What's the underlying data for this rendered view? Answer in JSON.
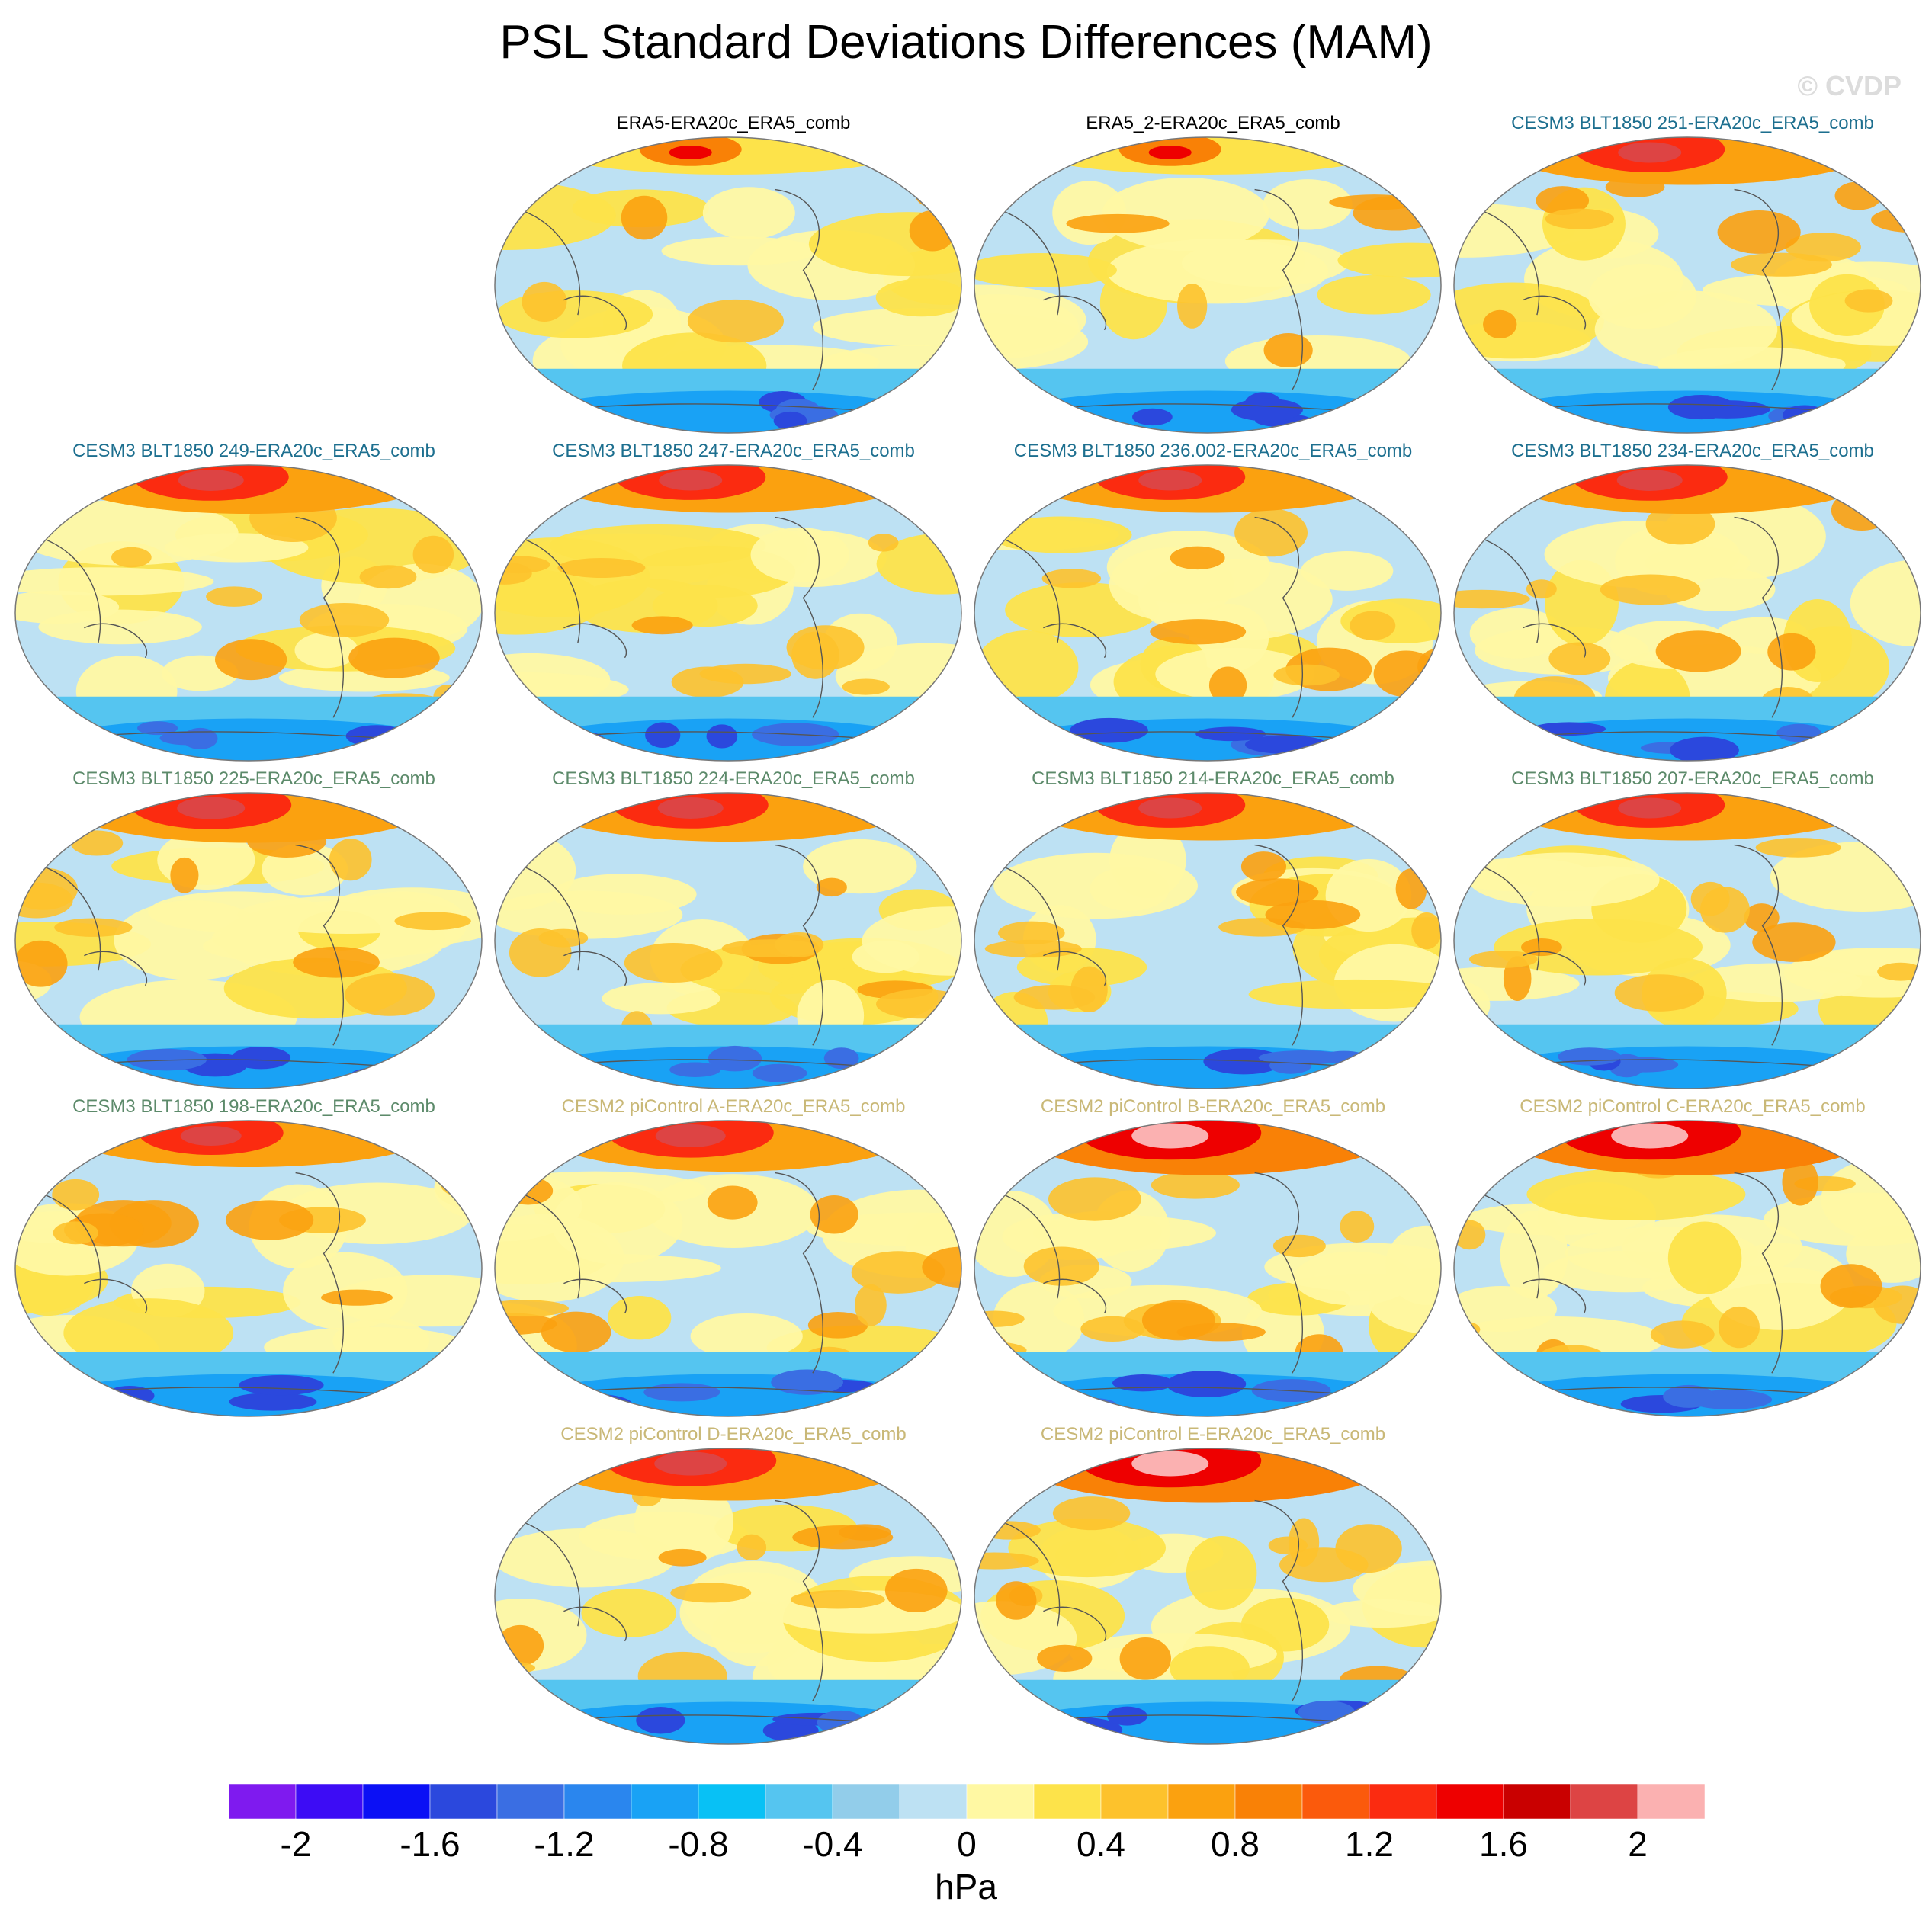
{
  "title": "PSL Standard Deviations Differences (MAM)",
  "watermark": "© CVDP",
  "units": "hPa",
  "colors": {
    "levels": [
      "#7f1aef",
      "#3d0cf5",
      "#0b10f5",
      "#2b48dd",
      "#3a6ee3",
      "#2a86ee",
      "#19a2f5",
      "#08c1f5",
      "#55c5f0",
      "#92cdea",
      "#bde1f3",
      "#fff8a3",
      "#fde34a",
      "#fdc22c",
      "#fba10f",
      "#f98106",
      "#fb5a0c",
      "#fb2b10",
      "#ee0000",
      "#c90000",
      "#dd4444",
      "#fbb1b1"
    ],
    "coastline": "#555555"
  },
  "colorbar": {
    "ticks": [
      "-2",
      "-1.6",
      "-1.2",
      "-0.8",
      "-0.4",
      "0",
      "0.4",
      "0.8",
      "1.2",
      "1.6",
      "2"
    ]
  },
  "panels": [
    {
      "label": "ERA5-ERA20c_ERA5_comb",
      "group": "obs",
      "intensity": 0.1
    },
    {
      "label": "ERA5_2-ERA20c_ERA5_comb",
      "group": "obs",
      "intensity": 0.1
    },
    {
      "label": "CESM3 BLT1850 251-ERA20c_ERA5_comb",
      "group": "blue",
      "intensity": 0.55
    },
    {
      "label": "CESM3 BLT1850 249-ERA20c_ERA5_comb",
      "group": "blue",
      "intensity": 0.6
    },
    {
      "label": "CESM3 BLT1850 247-ERA20c_ERA5_comb",
      "group": "blue",
      "intensity": 0.55
    },
    {
      "label": "CESM3 BLT1850 236.002-ERA20c_ERA5_comb",
      "group": "blue",
      "intensity": 0.55
    },
    {
      "label": "CESM3 BLT1850 234-ERA20c_ERA5_comb",
      "group": "blue",
      "intensity": 0.6
    },
    {
      "label": "CESM3 BLT1850 225-ERA20c_ERA5_comb",
      "group": "green",
      "intensity": 0.65
    },
    {
      "label": "CESM3 BLT1850 224-ERA20c_ERA5_comb",
      "group": "green",
      "intensity": 0.6
    },
    {
      "label": "CESM3 BLT1850 214-ERA20c_ERA5_comb",
      "group": "green",
      "intensity": 0.55
    },
    {
      "label": "CESM3 BLT1850 207-ERA20c_ERA5_comb",
      "group": "green",
      "intensity": 0.55
    },
    {
      "label": "CESM3 BLT1850 198-ERA20c_ERA5_comb",
      "group": "green",
      "intensity": 0.5
    },
    {
      "label": "CESM2 piControl A-ERA20c_ERA5_comb",
      "group": "tan",
      "intensity": 0.7
    },
    {
      "label": "CESM2 piControl B-ERA20c_ERA5_comb",
      "group": "tan",
      "intensity": 0.85
    },
    {
      "label": "CESM2 piControl C-ERA20c_ERA5_comb",
      "group": "tan",
      "intensity": 0.85
    },
    {
      "label": "CESM2 piControl D-ERA20c_ERA5_comb",
      "group": "tan",
      "intensity": 0.75
    },
    {
      "label": "CESM2 piControl E-ERA20c_ERA5_comb",
      "group": "tan",
      "intensity": 0.85
    }
  ]
}
